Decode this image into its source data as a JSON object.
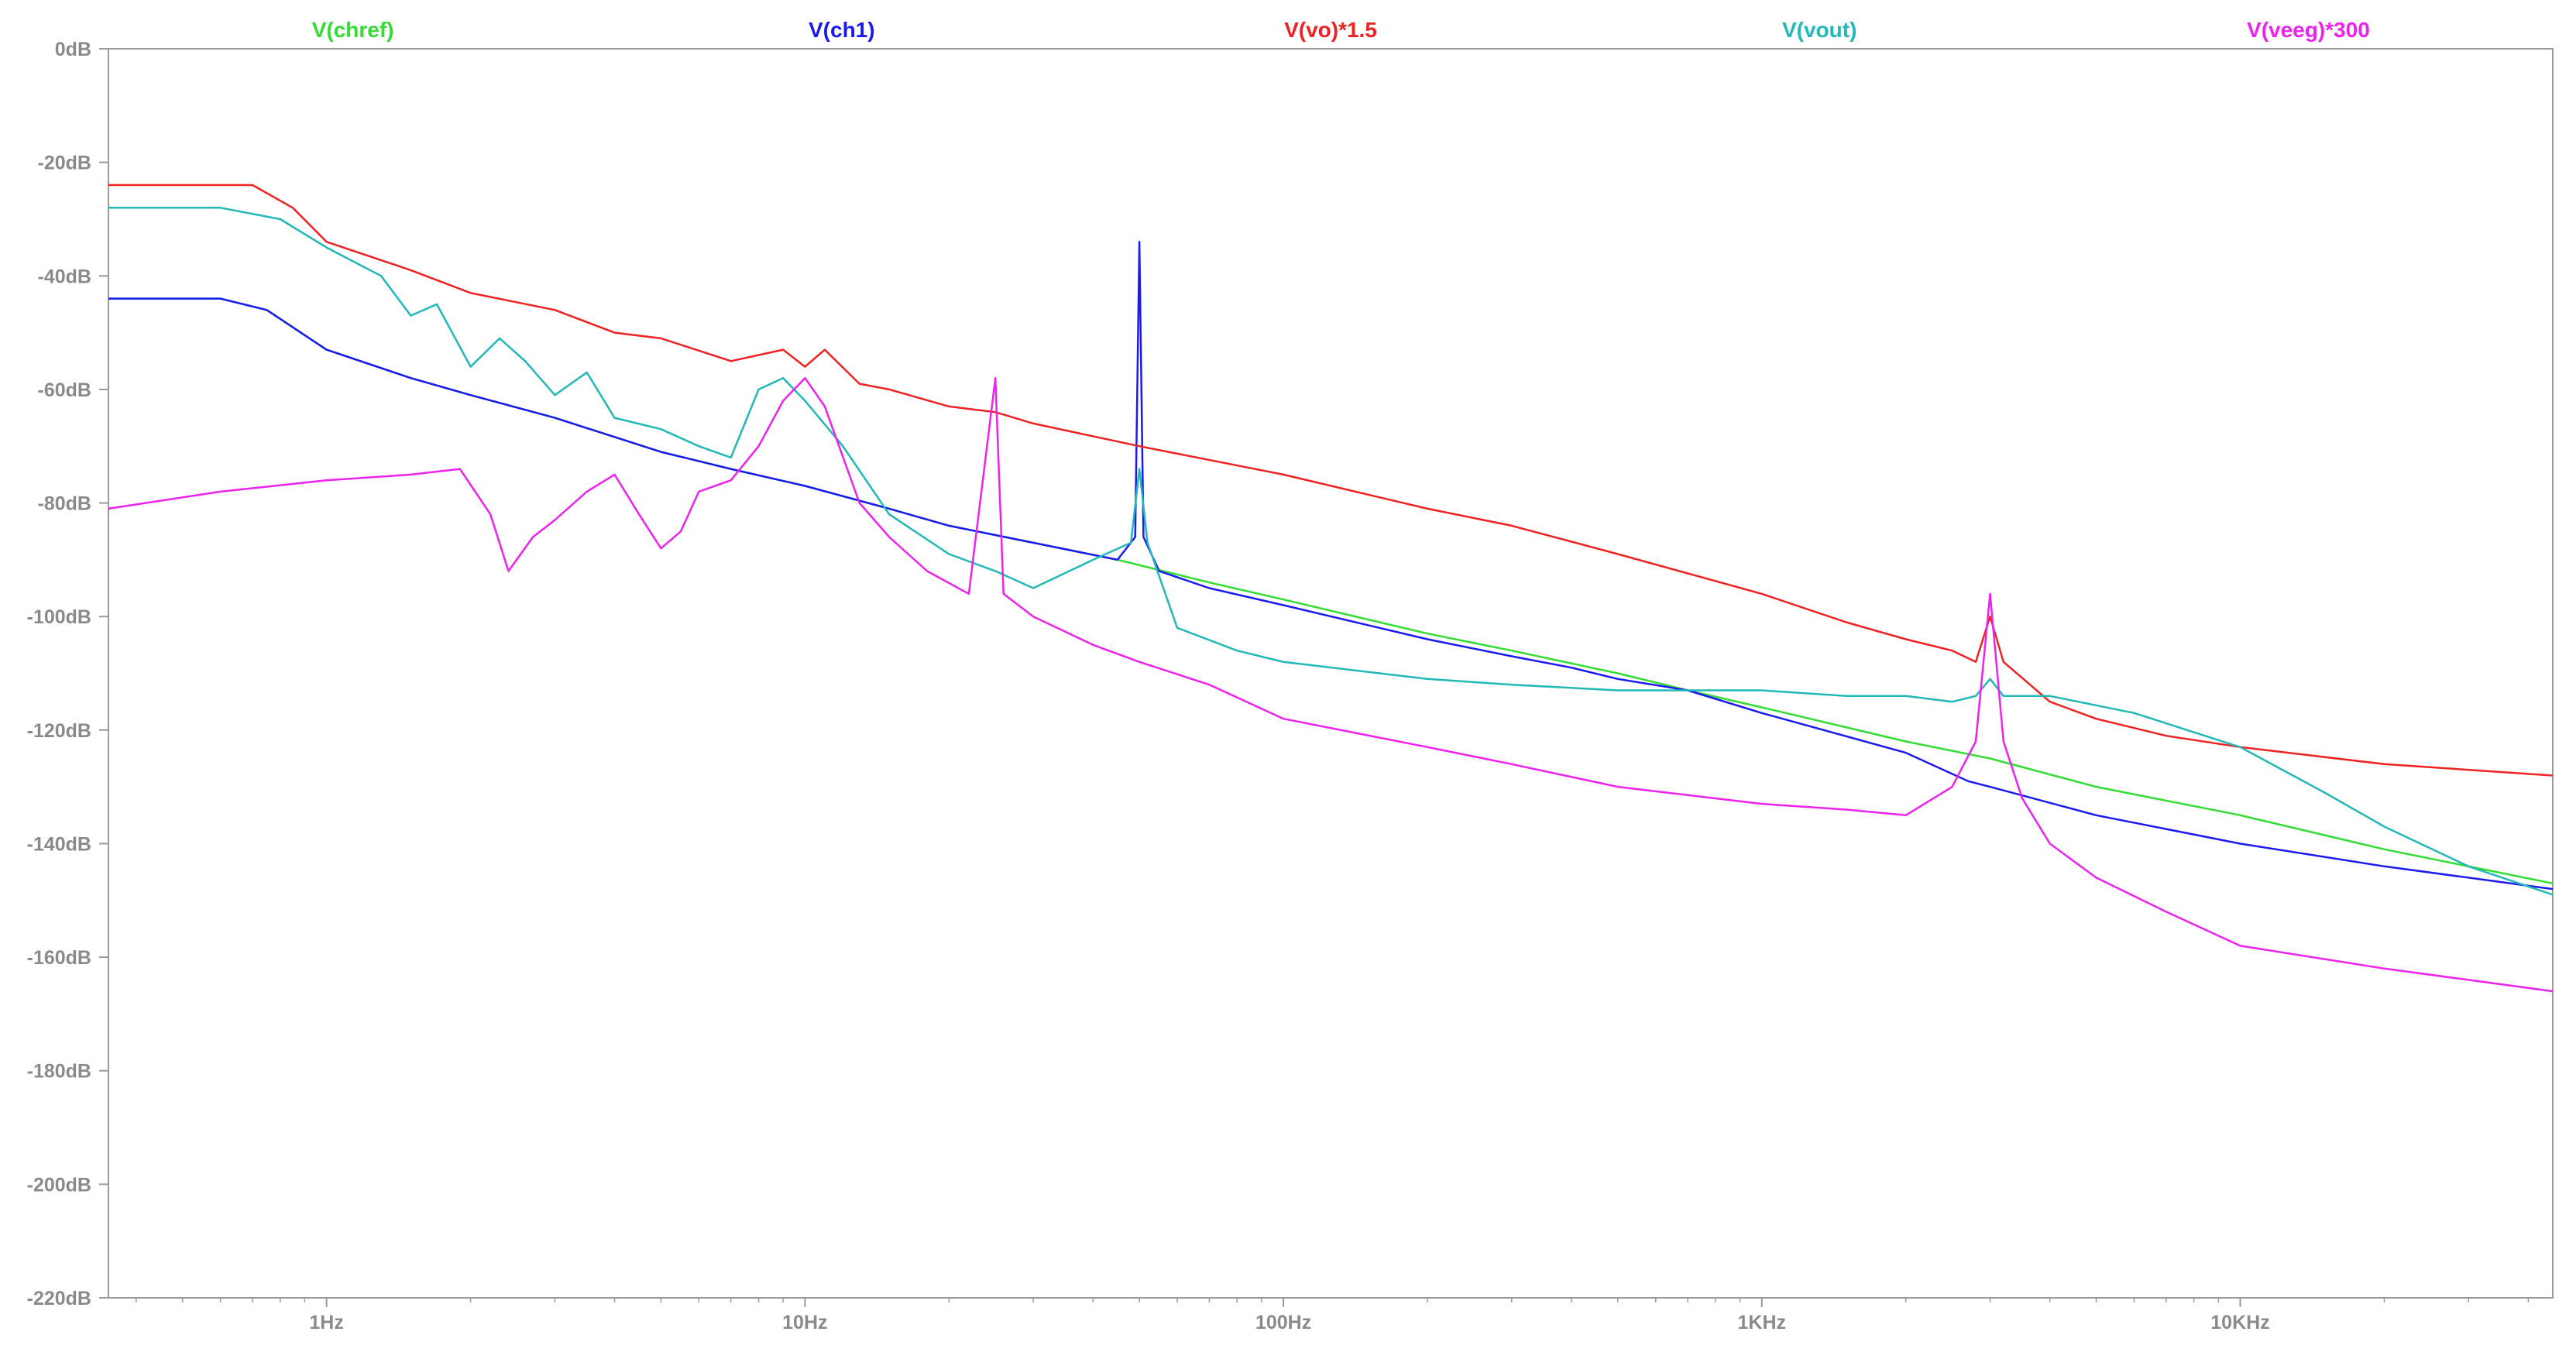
{
  "chart_data": {
    "type": "line",
    "x_scale": "log",
    "xlim": [
      0.35,
      45000
    ],
    "ylim": [
      -220,
      0
    ],
    "grid": false,
    "legend_placement": "top",
    "axis_color": "#9a9a9a",
    "y_ticks": [
      {
        "value": 0,
        "label": "0dB"
      },
      {
        "value": -20,
        "label": "-20dB"
      },
      {
        "value": -40,
        "label": "-40dB"
      },
      {
        "value": -60,
        "label": "-60dB"
      },
      {
        "value": -80,
        "label": "-80dB"
      },
      {
        "value": -100,
        "label": "-100dB"
      },
      {
        "value": -120,
        "label": "-120dB"
      },
      {
        "value": -140,
        "label": "-140dB"
      },
      {
        "value": -160,
        "label": "-160dB"
      },
      {
        "value": -180,
        "label": "-180dB"
      },
      {
        "value": -200,
        "label": "-200dB"
      },
      {
        "value": -220,
        "label": "-220dB"
      }
    ],
    "x_ticks": [
      {
        "value": 1,
        "label": "1Hz"
      },
      {
        "value": 10,
        "label": "10Hz"
      },
      {
        "value": 100,
        "label": "100Hz"
      },
      {
        "value": 1000,
        "label": "1KHz"
      },
      {
        "value": 10000,
        "label": "10KHz"
      }
    ],
    "series": [
      {
        "name": "V(chref)",
        "color": "#33dd33",
        "points": [
          [
            0.35,
            -44
          ],
          [
            0.6,
            -44
          ],
          [
            0.75,
            -46
          ],
          [
            1,
            -53
          ],
          [
            1.5,
            -58
          ],
          [
            2,
            -61
          ],
          [
            3,
            -65
          ],
          [
            5,
            -71
          ],
          [
            7,
            -74
          ],
          [
            10,
            -77
          ],
          [
            15,
            -81
          ],
          [
            20,
            -84
          ],
          [
            30,
            -87
          ],
          [
            45,
            -90
          ],
          [
            70,
            -94
          ],
          [
            100,
            -97
          ],
          [
            200,
            -103
          ],
          [
            300,
            -106
          ],
          [
            500,
            -110
          ],
          [
            700,
            -113
          ],
          [
            1000,
            -116
          ],
          [
            2000,
            -122
          ],
          [
            3000,
            -125
          ],
          [
            5000,
            -130
          ],
          [
            10000,
            -135
          ],
          [
            20000,
            -141
          ],
          [
            45000,
            -147
          ]
        ]
      },
      {
        "name": "V(ch1)",
        "color": "#1a1aee",
        "points": [
          [
            0.35,
            -44
          ],
          [
            0.6,
            -44
          ],
          [
            0.75,
            -46
          ],
          [
            1,
            -53
          ],
          [
            1.5,
            -58
          ],
          [
            2,
            -61
          ],
          [
            3,
            -65
          ],
          [
            5,
            -71
          ],
          [
            7,
            -74
          ],
          [
            10,
            -77
          ],
          [
            15,
            -81
          ],
          [
            20,
            -84
          ],
          [
            30,
            -87
          ],
          [
            45,
            -90
          ],
          [
            49,
            -86
          ],
          [
            50,
            -34
          ],
          [
            51,
            -86
          ],
          [
            55,
            -92
          ],
          [
            70,
            -95
          ],
          [
            100,
            -98
          ],
          [
            200,
            -104
          ],
          [
            300,
            -107
          ],
          [
            400,
            -109
          ],
          [
            500,
            -111
          ],
          [
            700,
            -113
          ],
          [
            1000,
            -117
          ],
          [
            2000,
            -124
          ],
          [
            2700,
            -129
          ],
          [
            3000,
            -130
          ],
          [
            5000,
            -135
          ],
          [
            10000,
            -140
          ],
          [
            20000,
            -144
          ],
          [
            45000,
            -148
          ]
        ]
      },
      {
        "name": "V(vo)*1.5",
        "color": "#ee2222",
        "points": [
          [
            0.35,
            -24
          ],
          [
            0.7,
            -24
          ],
          [
            0.85,
            -28
          ],
          [
            1,
            -34
          ],
          [
            1.5,
            -39
          ],
          [
            2,
            -43
          ],
          [
            3,
            -46
          ],
          [
            4,
            -50
          ],
          [
            5,
            -51
          ],
          [
            7,
            -55
          ],
          [
            9,
            -53
          ],
          [
            10,
            -56
          ],
          [
            11,
            -53
          ],
          [
            13,
            -59
          ],
          [
            15,
            -60
          ],
          [
            20,
            -63
          ],
          [
            25,
            -64
          ],
          [
            30,
            -66
          ],
          [
            50,
            -70
          ],
          [
            100,
            -75
          ],
          [
            200,
            -81
          ],
          [
            300,
            -84
          ],
          [
            500,
            -89
          ],
          [
            1000,
            -96
          ],
          [
            1500,
            -101
          ],
          [
            2000,
            -104
          ],
          [
            2500,
            -106
          ],
          [
            2800,
            -108
          ],
          [
            3000,
            -100
          ],
          [
            3200,
            -108
          ],
          [
            4000,
            -115
          ],
          [
            5000,
            -118
          ],
          [
            7000,
            -121
          ],
          [
            10000,
            -123
          ],
          [
            20000,
            -126
          ],
          [
            45000,
            -128
          ]
        ]
      },
      {
        "name": "V(vout)",
        "color": "#22b8b8",
        "points": [
          [
            0.35,
            -28
          ],
          [
            0.6,
            -28
          ],
          [
            0.8,
            -30
          ],
          [
            1,
            -35
          ],
          [
            1.3,
            -40
          ],
          [
            1.5,
            -47
          ],
          [
            1.7,
            -45
          ],
          [
            2,
            -56
          ],
          [
            2.3,
            -51
          ],
          [
            2.6,
            -55
          ],
          [
            3,
            -61
          ],
          [
            3.5,
            -57
          ],
          [
            4,
            -65
          ],
          [
            5,
            -67
          ],
          [
            6,
            -70
          ],
          [
            7,
            -72
          ],
          [
            8,
            -60
          ],
          [
            9,
            -58
          ],
          [
            10,
            -62
          ],
          [
            12,
            -70
          ],
          [
            15,
            -82
          ],
          [
            20,
            -89
          ],
          [
            25,
            -92
          ],
          [
            30,
            -95
          ],
          [
            40,
            -90
          ],
          [
            48,
            -87
          ],
          [
            50,
            -74
          ],
          [
            52,
            -87
          ],
          [
            60,
            -102
          ],
          [
            80,
            -106
          ],
          [
            100,
            -108
          ],
          [
            200,
            -111
          ],
          [
            300,
            -112
          ],
          [
            500,
            -113
          ],
          [
            1000,
            -113
          ],
          [
            1500,
            -114
          ],
          [
            2000,
            -114
          ],
          [
            2500,
            -115
          ],
          [
            2800,
            -114
          ],
          [
            3000,
            -111
          ],
          [
            3200,
            -114
          ],
          [
            4000,
            -114
          ],
          [
            6000,
            -117
          ],
          [
            10000,
            -123
          ],
          [
            15000,
            -131
          ],
          [
            20000,
            -137
          ],
          [
            30000,
            -144
          ],
          [
            45000,
            -149
          ]
        ]
      },
      {
        "name": "V(veeg)*300",
        "color": "#ee22ee",
        "points": [
          [
            0.35,
            -81
          ],
          [
            0.6,
            -78
          ],
          [
            1,
            -76
          ],
          [
            1.5,
            -75
          ],
          [
            1.9,
            -74
          ],
          [
            2.2,
            -82
          ],
          [
            2.4,
            -92
          ],
          [
            2.7,
            -86
          ],
          [
            3,
            -83
          ],
          [
            3.5,
            -78
          ],
          [
            4,
            -75
          ],
          [
            4.5,
            -82
          ],
          [
            5,
            -88
          ],
          [
            5.5,
            -85
          ],
          [
            6,
            -78
          ],
          [
            7,
            -76
          ],
          [
            8,
            -70
          ],
          [
            9,
            -62
          ],
          [
            10,
            -58
          ],
          [
            11,
            -63
          ],
          [
            13,
            -80
          ],
          [
            15,
            -86
          ],
          [
            18,
            -92
          ],
          [
            22,
            -96
          ],
          [
            25,
            -58
          ],
          [
            26,
            -96
          ],
          [
            30,
            -100
          ],
          [
            40,
            -105
          ],
          [
            50,
            -108
          ],
          [
            70,
            -112
          ],
          [
            100,
            -118
          ],
          [
            200,
            -123
          ],
          [
            300,
            -126
          ],
          [
            500,
            -130
          ],
          [
            1000,
            -133
          ],
          [
            1500,
            -134
          ],
          [
            2000,
            -135
          ],
          [
            2500,
            -130
          ],
          [
            2800,
            -122
          ],
          [
            3000,
            -96
          ],
          [
            3200,
            -122
          ],
          [
            3500,
            -132
          ],
          [
            4000,
            -140
          ],
          [
            5000,
            -146
          ],
          [
            7000,
            -152
          ],
          [
            10000,
            -158
          ],
          [
            20000,
            -162
          ],
          [
            45000,
            -166
          ]
        ]
      }
    ]
  }
}
